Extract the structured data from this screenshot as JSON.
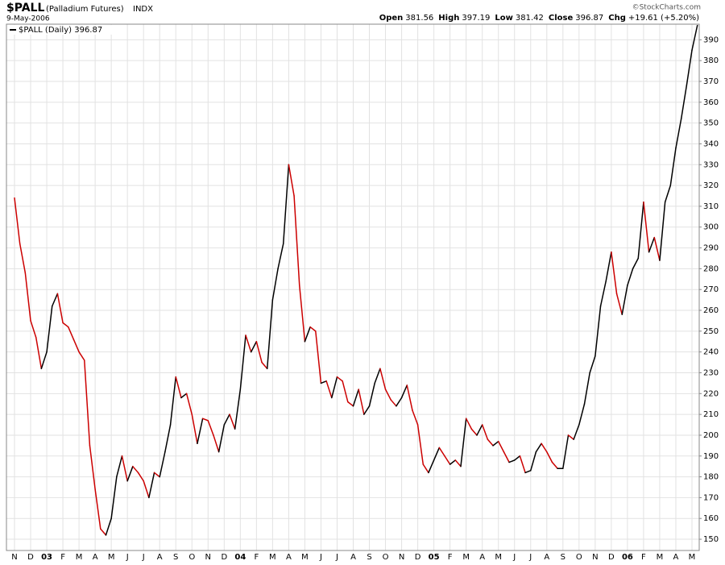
{
  "chart_data": {
    "type": "line",
    "title": "$PALL",
    "subtitle": "(Palladium Futures)",
    "exchange": "INDX",
    "date": "9-May-2006",
    "credit": "©StockCharts.com",
    "quote": [
      {
        "label": "Open",
        "value": 381.56
      },
      {
        "label": "High",
        "value": 397.19
      },
      {
        "label": "Low",
        "value": 381.42
      },
      {
        "label": "Close",
        "value": 396.87
      },
      {
        "label": "Chg",
        "value": "+19.61 (+5.20%)"
      }
    ],
    "categories": [
      "N",
      null,
      null,
      "D",
      null,
      null,
      "03",
      null,
      null,
      "F",
      null,
      null,
      "M",
      null,
      null,
      "A",
      null,
      null,
      "M",
      null,
      null,
      "J",
      null,
      null,
      "J",
      null,
      null,
      "A",
      null,
      null,
      "S",
      null,
      null,
      "O",
      null,
      null,
      "N",
      null,
      null,
      "D",
      null,
      null,
      "04",
      null,
      null,
      "F",
      null,
      null,
      "M",
      null,
      null,
      "A",
      null,
      null,
      "M",
      null,
      null,
      "J",
      null,
      null,
      "J",
      null,
      null,
      "A",
      null,
      null,
      "S",
      null,
      null,
      "O",
      null,
      null,
      "N",
      null,
      null,
      "D",
      null,
      null,
      "05",
      null,
      null,
      "F",
      null,
      null,
      "M",
      null,
      null,
      "A",
      null,
      null,
      "M",
      null,
      null,
      "J",
      null,
      null,
      "J",
      null,
      null,
      "A",
      null,
      null,
      "S",
      null,
      null,
      "O",
      null,
      null,
      "N",
      null,
      null,
      "D",
      null,
      null,
      "06",
      null,
      null,
      "F",
      null,
      null,
      "M",
      null,
      null,
      "A",
      null,
      null,
      "M",
      null
    ],
    "series": [
      {
        "name": "$PALL (Daily)",
        "color": "#000000",
        "down_color": "#cc0000",
        "values": [
          314,
          292,
          278,
          255,
          247,
          232,
          240,
          262,
          268,
          254,
          252,
          246,
          240,
          236,
          195,
          174,
          155,
          152,
          160,
          180,
          190,
          178,
          185,
          182,
          178,
          170,
          182,
          180,
          192,
          205,
          228,
          218,
          220,
          210,
          196,
          208,
          207,
          200,
          192,
          205,
          210,
          203,
          222,
          248,
          240,
          245,
          235,
          232,
          265,
          280,
          292,
          330,
          315,
          272,
          245,
          252,
          250,
          225,
          226,
          218,
          228,
          226,
          216,
          214,
          222,
          210,
          214,
          225,
          232,
          222,
          217,
          214,
          218,
          224,
          212,
          205,
          186,
          182,
          188,
          194,
          190,
          186,
          188,
          185,
          208,
          203,
          200,
          205,
          198,
          195,
          197,
          192,
          187,
          188,
          190,
          182,
          183,
          192,
          196,
          192,
          187,
          184,
          184,
          200,
          198,
          205,
          215,
          230,
          238,
          262,
          274,
          288,
          268,
          258,
          272,
          280,
          285,
          312,
          288,
          295,
          284,
          312,
          320,
          338,
          352,
          368,
          385,
          396.87
        ]
      }
    ],
    "ylim": [
      144.6,
      397.5
    ],
    "yticks": [
      150,
      160,
      170,
      180,
      190,
      200,
      210,
      220,
      230,
      240,
      250,
      260,
      270,
      280,
      290,
      300,
      310,
      320,
      330,
      340,
      350,
      360,
      370,
      380,
      390
    ],
    "grid": true,
    "legend": "top-left"
  }
}
